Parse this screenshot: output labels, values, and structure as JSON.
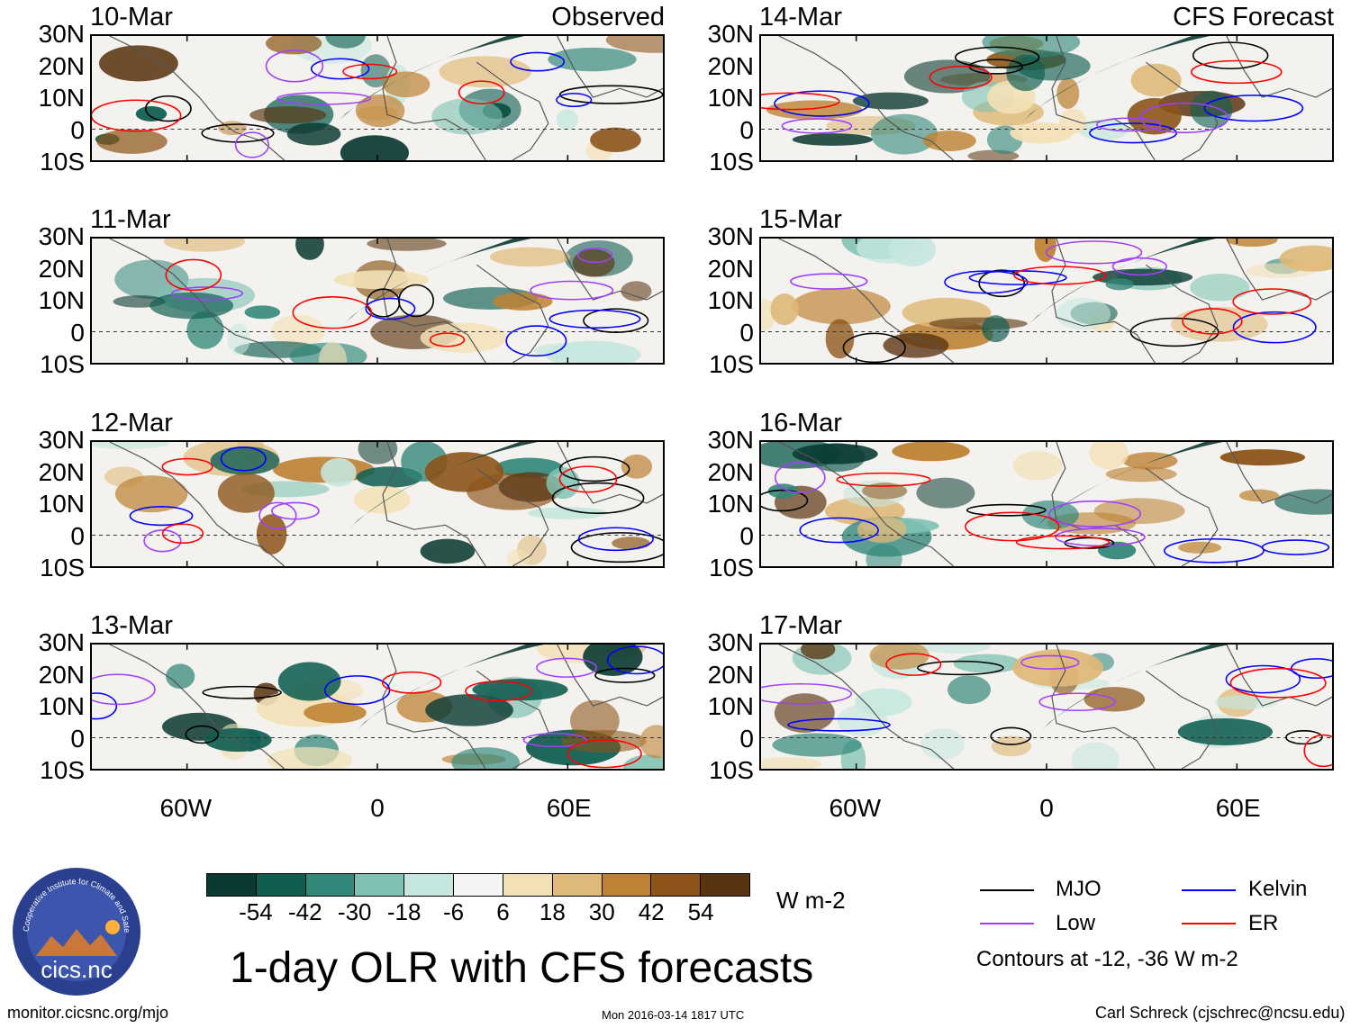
{
  "panels": [
    {
      "date": "10-Mar",
      "label": "Observed",
      "kind": "observed"
    },
    {
      "date": "14-Mar",
      "label": "CFS Forecast",
      "kind": "forecast"
    },
    {
      "date": "11-Mar",
      "label": "",
      "kind": "observed"
    },
    {
      "date": "15-Mar",
      "label": "",
      "kind": "forecast"
    },
    {
      "date": "12-Mar",
      "label": "",
      "kind": "observed"
    },
    {
      "date": "16-Mar",
      "label": "",
      "kind": "forecast"
    },
    {
      "date": "13-Mar",
      "label": "",
      "kind": "observed"
    },
    {
      "date": "17-Mar",
      "label": "",
      "kind": "forecast"
    }
  ],
  "axes": {
    "lat_labels": [
      "30N",
      "20N",
      "10N",
      "0",
      "10S"
    ],
    "lon_labels": [
      "60W",
      "0",
      "60E"
    ],
    "lat_range": [
      -10,
      30
    ],
    "lon_range": [
      -90,
      90
    ]
  },
  "colorbar": {
    "ticks": [
      "-54",
      "-42",
      "-30",
      "-18",
      "-6",
      "6",
      "18",
      "30",
      "42",
      "54"
    ],
    "colors": [
      "#0a3a32",
      "#105e52",
      "#31877a",
      "#7fc2b3",
      "#c6e7df",
      "#f4f4f4",
      "#f3e1b6",
      "#dfb978",
      "#bd8233",
      "#8c5418",
      "#5a3410"
    ],
    "units": "W m-2"
  },
  "title": "1-day OLR with CFS forecasts",
  "legend": {
    "items": [
      {
        "label": "MJO",
        "color": "#000000"
      },
      {
        "label": "Kelvin",
        "color": "#0000ff"
      },
      {
        "label": "Low",
        "color": "#a040ff"
      },
      {
        "label": "ER",
        "color": "#ff0000"
      }
    ],
    "contour_note": "Contours at -12, -36 W m-2"
  },
  "footer": {
    "url": "monitor.cicsnc.org/mjo",
    "timestamp": "Mon 2016-03-14 1817 UTC",
    "author": "Carl Schreck (cjschrec@ncsu.edu)"
  },
  "logo": {
    "name": "cics.nc",
    "ring_text": "Cooperative Institute for Climate and Satellites"
  }
}
